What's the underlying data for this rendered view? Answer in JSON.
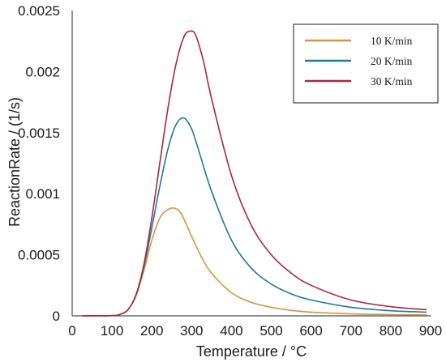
{
  "chart_data": {
    "type": "line",
    "xlabel": "Temperature / °C",
    "ylabel": "ReactionRate / (1/s)",
    "xlim": [
      0,
      900
    ],
    "ylim": [
      0,
      0.0025
    ],
    "xticks": [
      "0",
      "100",
      "200",
      "300",
      "400",
      "500",
      "600",
      "700",
      "800",
      "900"
    ],
    "yticks": [
      "0",
      "0.0005",
      "0.001",
      "0.0015",
      "0.002",
      "0.0025"
    ],
    "grid": false,
    "legend_position": "top-right",
    "series": [
      {
        "name": "10 K/min",
        "color": "#d9923f",
        "x": [
          25,
          100,
          120,
          140,
          160,
          180,
          200,
          220,
          240,
          258,
          275,
          300,
          325,
          350,
          400,
          450,
          500,
          550,
          600,
          700,
          800,
          890
        ],
        "y": [
          0,
          2e-06,
          1.2e-05,
          5e-05,
          0.00016,
          0.00037,
          0.00062,
          0.0008,
          0.00087,
          0.00088,
          0.00083,
          0.00065,
          0.00048,
          0.00035,
          0.00019,
          0.00011,
          7e-05,
          4.5e-05,
          3e-05,
          1.6e-05,
          1e-05,
          8e-06
        ]
      },
      {
        "name": "20 K/min",
        "color": "#1f7a96",
        "x": [
          25,
          100,
          120,
          140,
          160,
          180,
          200,
          220,
          240,
          260,
          280,
          300,
          320,
          350,
          400,
          450,
          500,
          550,
          600,
          700,
          800,
          890
        ],
        "y": [
          0,
          2e-06,
          1.2e-05,
          5e-05,
          0.00017,
          0.0004,
          0.00072,
          0.00106,
          0.00136,
          0.00156,
          0.00162,
          0.00153,
          0.00133,
          0.00102,
          0.00062,
          0.00039,
          0.00026,
          0.00018,
          0.00013,
          7e-05,
          4.2e-05,
          3e-05
        ]
      },
      {
        "name": "30 K/min",
        "color": "#a8293a",
        "x": [
          25,
          100,
          120,
          140,
          160,
          180,
          200,
          220,
          240,
          260,
          280,
          295,
          310,
          330,
          350,
          400,
          450,
          500,
          550,
          600,
          700,
          800,
          890
        ],
        "y": [
          0,
          2e-06,
          1.2e-05,
          5e-05,
          0.00017,
          0.00042,
          0.0008,
          0.00125,
          0.00169,
          0.00205,
          0.00228,
          0.00233,
          0.0023,
          0.00208,
          0.00178,
          0.00115,
          0.00074,
          0.0005,
          0.00035,
          0.00025,
          0.00013,
          7.5e-05,
          5e-05
        ]
      }
    ]
  }
}
